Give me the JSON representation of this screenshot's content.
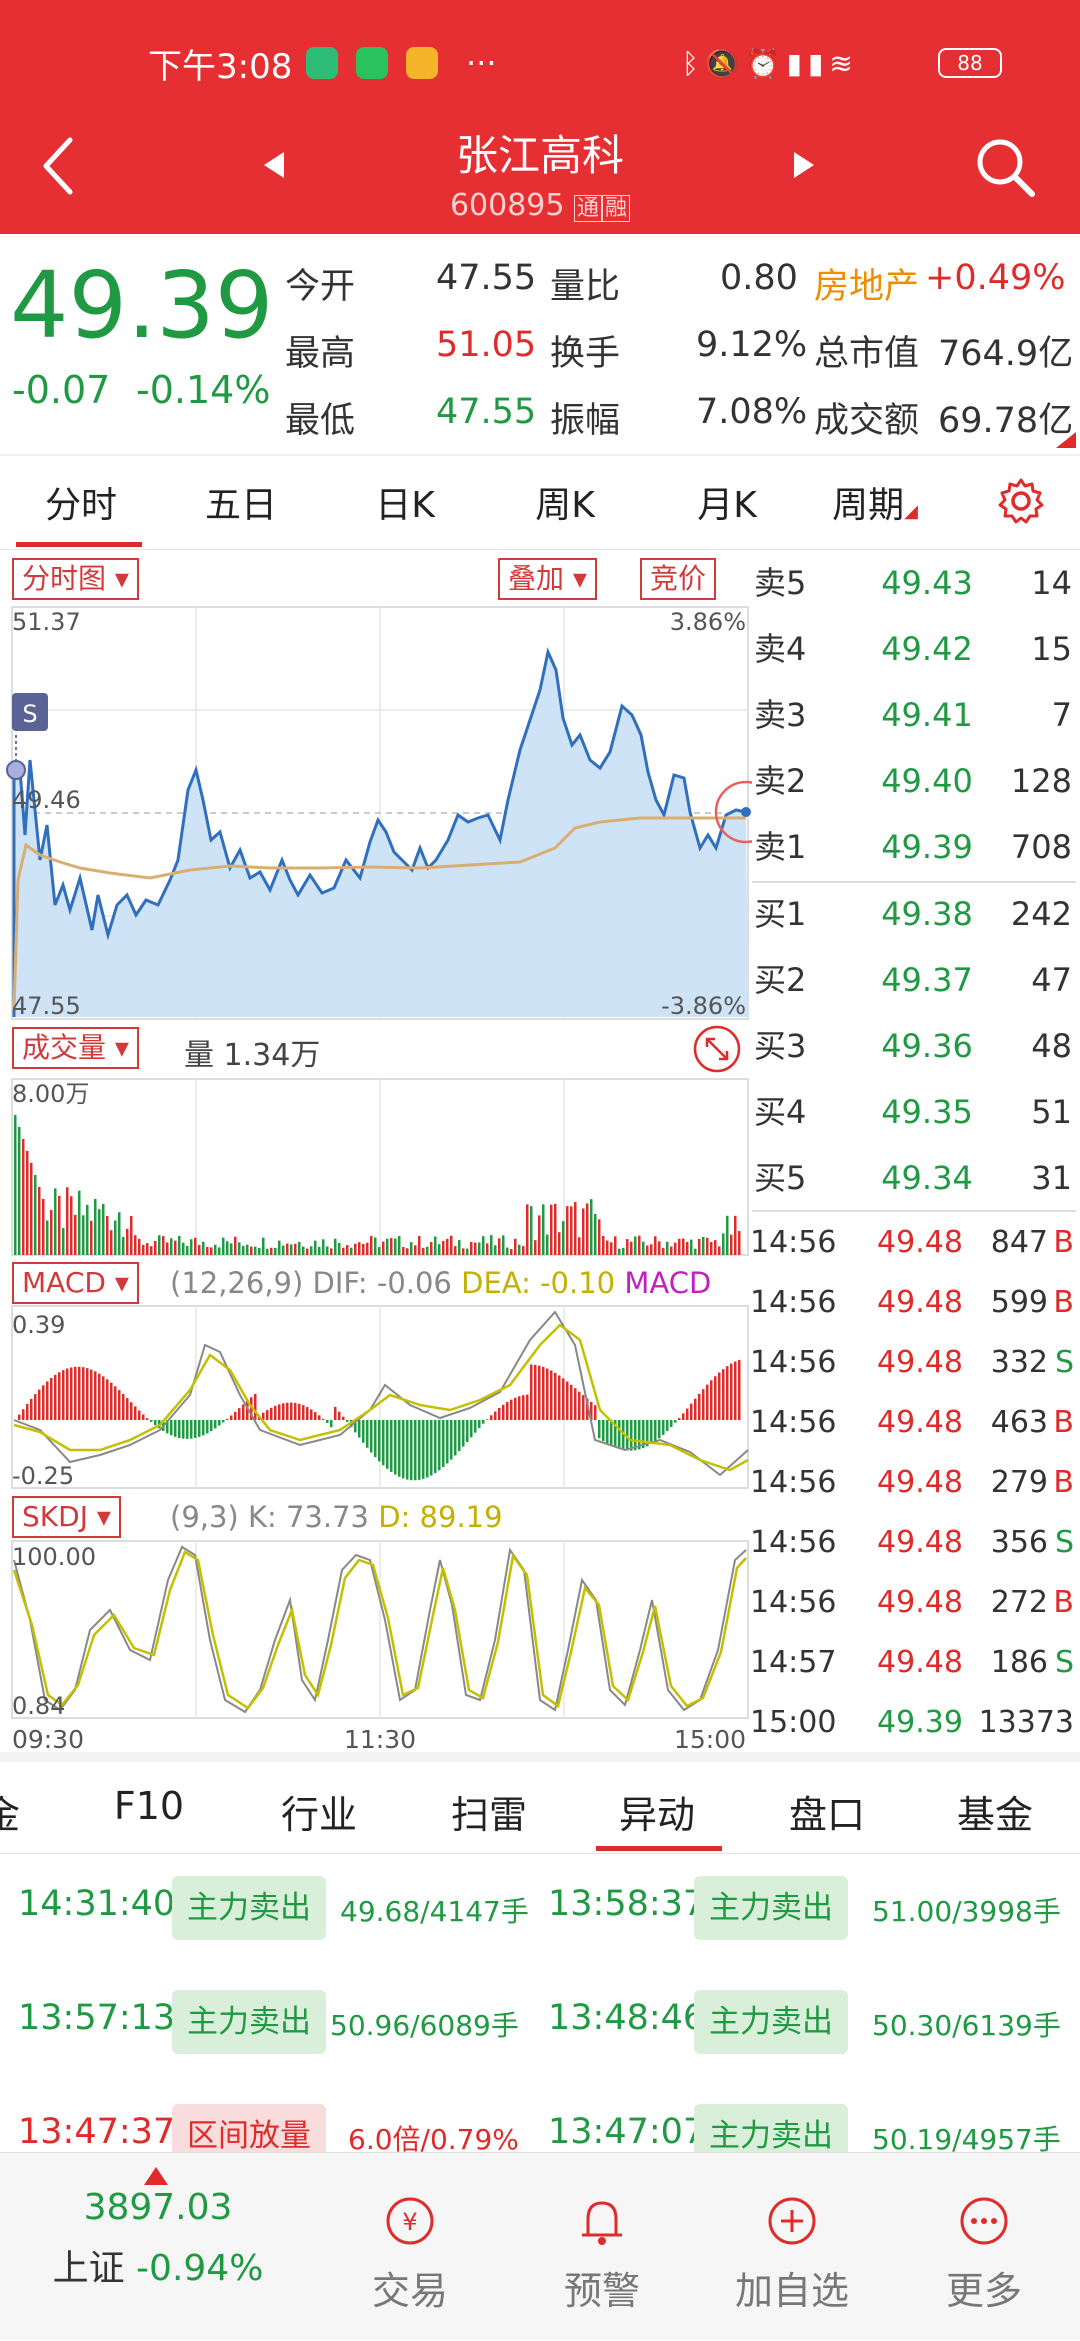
{
  "status_bar": {
    "time": "下午3:08",
    "more": "···",
    "battery": "88"
  },
  "header": {
    "title": "张江高科",
    "code": "600895",
    "tags": [
      "通",
      "融"
    ]
  },
  "quote": {
    "price": "49.39",
    "change": "-0.07",
    "change_pct": "-0.14%",
    "rows": [
      {
        "l1": "今开",
        "v1": "47.55",
        "l2": "量比",
        "v2": "0.80",
        "l3": "房地产",
        "v3": "+0.49%"
      },
      {
        "l1": "最高",
        "v1": "51.05",
        "l2": "换手",
        "v2": "9.12%",
        "l3": "总市值",
        "v3": "764.9亿"
      },
      {
        "l1": "最低",
        "v1": "47.55",
        "l2": "振幅",
        "v2": "7.08%",
        "l3": "成交额",
        "v3": "69.78亿"
      }
    ]
  },
  "tabs": [
    "分时",
    "五日",
    "日K",
    "周K",
    "月K",
    "周期"
  ],
  "chart_controls": {
    "timeshare": "分时图",
    "overlay": "叠加",
    "auction": "竞价",
    "volume": "成交量",
    "volume_value": "量 1.34万",
    "macd": "MACD",
    "skdj": "SKDJ"
  },
  "price_chart": {
    "top": "51.37",
    "mid": "49.46",
    "bottom": "47.55",
    "top_pct": "3.86%",
    "bottom_pct": "-3.86%",
    "marker": "S"
  },
  "volume_chart": {
    "max": "8.00万"
  },
  "macd_header": {
    "params": "(12,26,9)",
    "dif": "DIF: -0.06",
    "dea": "DEA: -0.10",
    "macd": "MACD"
  },
  "macd_axis": {
    "top": "0.39",
    "bottom": "-0.25"
  },
  "skdj_header": {
    "params": "(9,3)",
    "k": "K: 73.73",
    "d": "D: 89.19"
  },
  "skdj_axis": {
    "top": "100.00",
    "bottom": "0.84"
  },
  "time_axis": {
    "start": "09:30",
    "mid": "11:30",
    "end": "15:00"
  },
  "order_book": {
    "asks": [
      {
        "label": "卖5",
        "price": "49.43",
        "vol": "14"
      },
      {
        "label": "卖4",
        "price": "49.42",
        "vol": "15"
      },
      {
        "label": "卖3",
        "price": "49.41",
        "vol": "7"
      },
      {
        "label": "卖2",
        "price": "49.40",
        "vol": "128"
      },
      {
        "label": "卖1",
        "price": "49.39",
        "vol": "708"
      }
    ],
    "bids": [
      {
        "label": "买1",
        "price": "49.38",
        "vol": "242"
      },
      {
        "label": "买2",
        "price": "49.37",
        "vol": "47"
      },
      {
        "label": "买3",
        "price": "49.36",
        "vol": "48"
      },
      {
        "label": "买4",
        "price": "49.35",
        "vol": "51"
      },
      {
        "label": "买5",
        "price": "49.34",
        "vol": "31"
      }
    ]
  },
  "ticks": [
    {
      "time": "14:56",
      "price": "49.48",
      "vol": "847",
      "side": "B"
    },
    {
      "time": "14:56",
      "price": "49.48",
      "vol": "599",
      "side": "B"
    },
    {
      "time": "14:56",
      "price": "49.48",
      "vol": "332",
      "side": "S"
    },
    {
      "time": "14:56",
      "price": "49.48",
      "vol": "463",
      "side": "B"
    },
    {
      "time": "14:56",
      "price": "49.48",
      "vol": "279",
      "side": "B"
    },
    {
      "time": "14:56",
      "price": "49.48",
      "vol": "356",
      "side": "S"
    },
    {
      "time": "14:56",
      "price": "49.48",
      "vol": "272",
      "side": "B"
    },
    {
      "time": "14:57",
      "price": "49.48",
      "vol": "186",
      "side": "S"
    },
    {
      "time": "15:00",
      "price": "49.39",
      "vol": "13373",
      "side": ""
    }
  ],
  "lower_tabs": [
    "金",
    "F10",
    "行业",
    "扫雷",
    "异动",
    "盘口",
    "基金"
  ],
  "events": [
    {
      "time": "14:31:40",
      "type": "主力卖出",
      "detail": "49.68/4147手",
      "time2": "13:58:37",
      "type2": "主力卖出",
      "detail2": "51.00/3998手"
    },
    {
      "time": "13:57:13",
      "type": "主力卖出",
      "detail": "50.96/6089手",
      "time2": "13:48:46",
      "type2": "主力卖出",
      "detail2": "50.30/6139手"
    },
    {
      "time": "13:47:37",
      "type": "区间放量",
      "detail": "6.0倍/0.79%",
      "time2": "13:47:07",
      "type2": "主力卖出",
      "detail2": "50.19/4957手"
    }
  ],
  "bottom_nav": {
    "index_value": "3897.03",
    "index_name": "上证",
    "index_change": "-0.94%",
    "trade": "交易",
    "alert": "预警",
    "watchlist": "加自选",
    "more": "更多"
  },
  "colors": {
    "header_red": "#e52f33",
    "up_red": "#e02b2b",
    "down_green": "#1f9a43",
    "accent_orange": "#f08c00"
  }
}
